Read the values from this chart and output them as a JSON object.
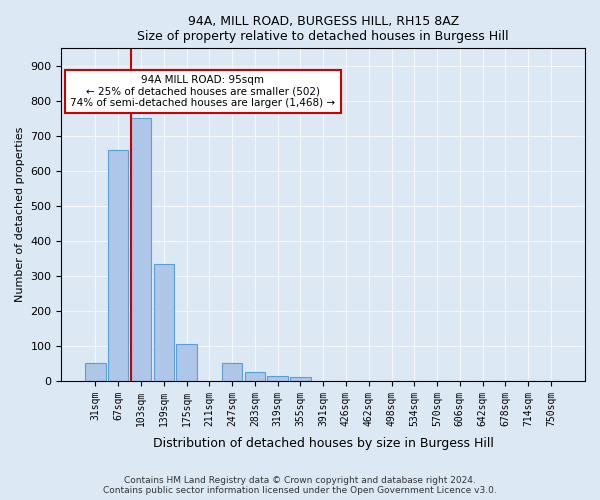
{
  "title1": "94A, MILL ROAD, BURGESS HILL, RH15 8AZ",
  "title2": "Size of property relative to detached houses in Burgess Hill",
  "xlabel": "Distribution of detached houses by size in Burgess Hill",
  "ylabel": "Number of detached properties",
  "categories": [
    "31sqm",
    "67sqm",
    "103sqm",
    "139sqm",
    "175sqm",
    "211sqm",
    "247sqm",
    "283sqm",
    "319sqm",
    "355sqm",
    "391sqm",
    "426sqm",
    "462sqm",
    "498sqm",
    "534sqm",
    "570sqm",
    "606sqm",
    "642sqm",
    "678sqm",
    "714sqm",
    "750sqm"
  ],
  "values": [
    50,
    660,
    750,
    335,
    105,
    0,
    50,
    25,
    15,
    10,
    0,
    0,
    0,
    0,
    0,
    0,
    0,
    0,
    0,
    0,
    0
  ],
  "bar_color": "#aec6e8",
  "bar_edge_color": "#5a9fd4",
  "vline_x": 2,
  "vline_color": "#cc0000",
  "annotation_text": "94A MILL ROAD: 95sqm\n← 25% of detached houses are smaller (502)\n74% of semi-detached houses are larger (1,468) →",
  "annotation_box_color": "#ffffff",
  "annotation_box_edge": "#cc0000",
  "ylim": [
    0,
    950
  ],
  "yticks": [
    0,
    100,
    200,
    300,
    400,
    500,
    600,
    700,
    800,
    900
  ],
  "footer1": "Contains HM Land Registry data © Crown copyright and database right 2024.",
  "footer2": "Contains public sector information licensed under the Open Government Licence v3.0.",
  "bg_color": "#dce9f5",
  "plot_bg_color": "#dce9f5"
}
